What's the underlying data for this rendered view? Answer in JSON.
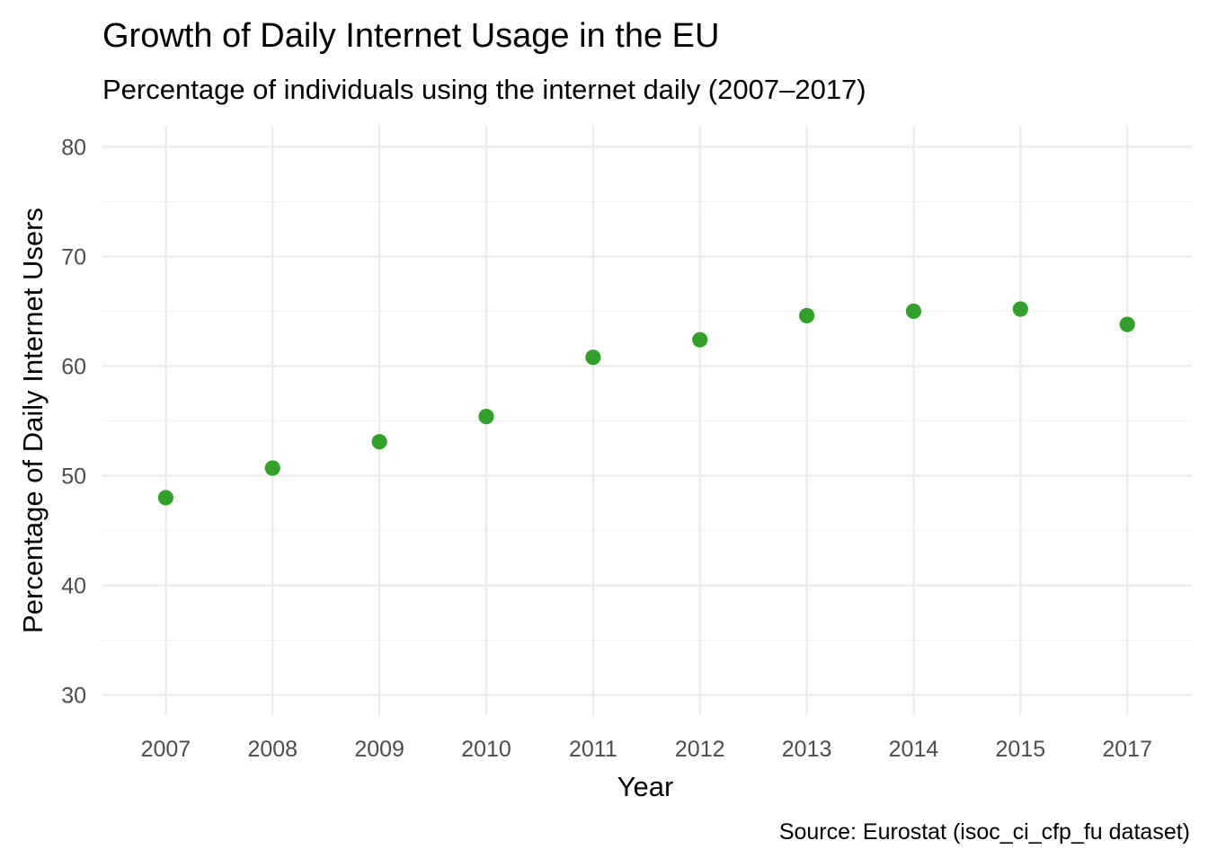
{
  "chart_data": {
    "type": "scatter",
    "title": "Growth of Daily Internet Usage in the EU",
    "subtitle": "Percentage of individuals using the internet daily (2007–2017)",
    "xlabel": "Year",
    "ylabel": "Percentage of Daily Internet Users",
    "caption": "Source: Eurostat (isoc_ci_cfp_fu dataset)",
    "categories": [
      "2007",
      "2008",
      "2009",
      "2010",
      "2011",
      "2012",
      "2013",
      "2014",
      "2015",
      "2017"
    ],
    "values": [
      48.0,
      50.7,
      53.1,
      55.4,
      60.8,
      62.4,
      64.6,
      65.0,
      65.2,
      63.8
    ],
    "ylim": [
      30,
      80
    ],
    "yticks": [
      30,
      40,
      50,
      60,
      70,
      80
    ],
    "grid": true,
    "legend": "none",
    "point_color": "#33a02c"
  }
}
